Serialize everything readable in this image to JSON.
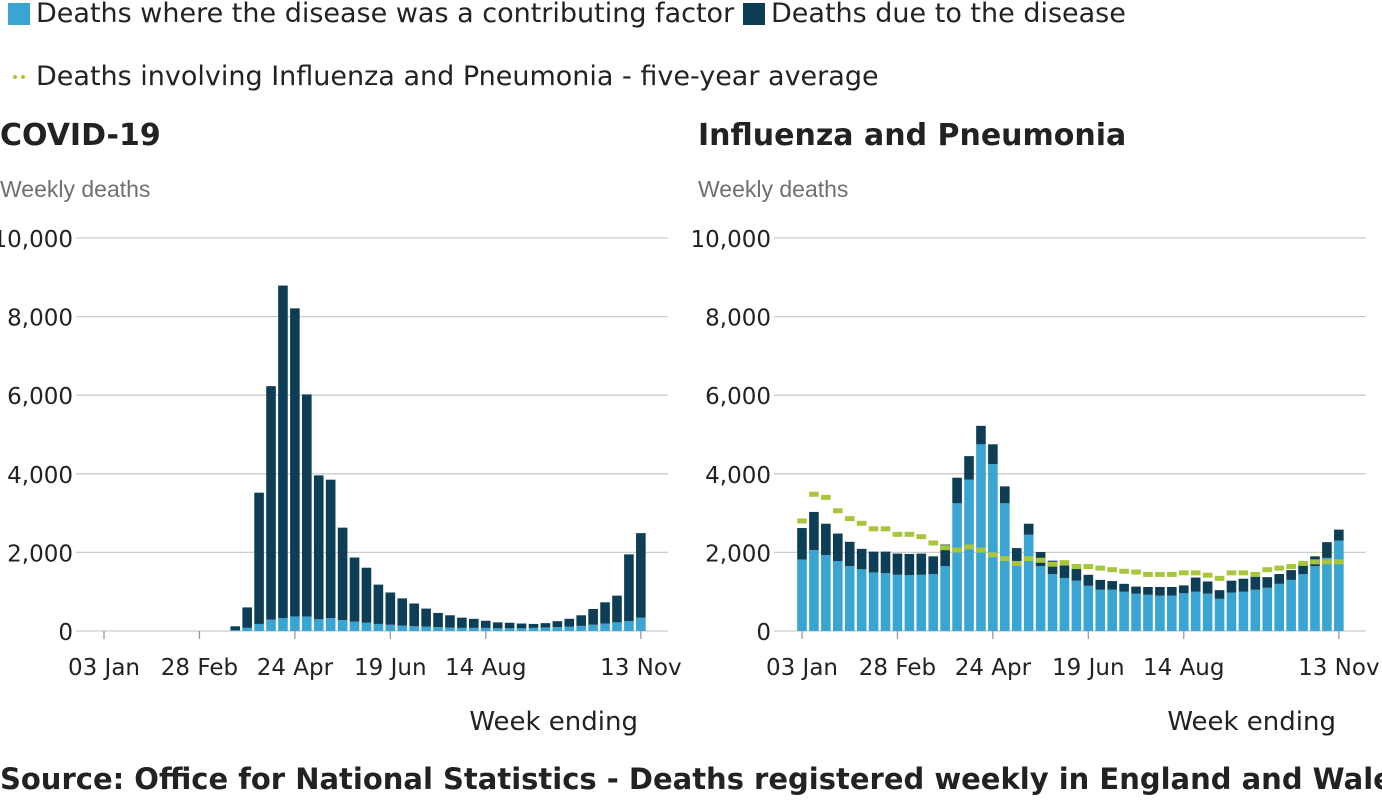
{
  "legend": {
    "items": [
      {
        "label": "Deaths where the disease was a contributing factor",
        "color": "#3aa4d3",
        "icon": "square-swatch"
      },
      {
        "label": "Deaths due to the disease",
        "color": "#0e3d56",
        "icon": "square-swatch"
      },
      {
        "label": "Deaths involving Influenza and Pneumonia - five-year average",
        "color": "#a8c63a",
        "icon": "dotted-line"
      }
    ]
  },
  "source": "Source: Office for National Statistics - Deaths registered weekly in England and Wales",
  "colors": {
    "contributing": "#3aa4d3",
    "due": "#0e3d56",
    "average": "#a8c63a",
    "grid": "#cccccc",
    "axis": "#999999"
  },
  "chart_data": [
    {
      "type": "bar",
      "stacked": true,
      "title": "COVID-19",
      "ylabel": "Weekly deaths",
      "xlabel": "Week ending",
      "ylim": [
        0,
        10000
      ],
      "yticks": [
        "0",
        "2,000",
        "4,000",
        "6,000",
        "8,000",
        "10,000"
      ],
      "ytick_values": [
        0,
        2000,
        4000,
        6000,
        8000,
        10000
      ],
      "xticks": [
        {
          "label": "03 Jan",
          "week": 0
        },
        {
          "label": "28 Feb",
          "week": 8
        },
        {
          "label": "24 Apr",
          "week": 16
        },
        {
          "label": "19 Jun",
          "week": 24
        },
        {
          "label": "14 Aug",
          "week": 32
        },
        {
          "label": "13 Nov",
          "week": 45
        }
      ],
      "grid": true,
      "series": [
        {
          "name": "Deaths where the disease was a contributing factor",
          "values": [
            0,
            0,
            0,
            0,
            0,
            0,
            0,
            0,
            0,
            0,
            0,
            20,
            80,
            180,
            290,
            330,
            370,
            370,
            300,
            330,
            280,
            240,
            210,
            180,
            160,
            140,
            120,
            110,
            100,
            90,
            80,
            80,
            80,
            70,
            70,
            70,
            80,
            90,
            100,
            110,
            130,
            160,
            190,
            220,
            250,
            340
          ]
        },
        {
          "name": "Deaths due to the disease",
          "values": [
            0,
            0,
            0,
            0,
            0,
            0,
            0,
            0,
            0,
            0,
            0,
            100,
            520,
            3340,
            5940,
            8460,
            7840,
            5650,
            3660,
            3520,
            2350,
            1630,
            1400,
            1000,
            820,
            690,
            580,
            460,
            360,
            310,
            260,
            230,
            180,
            150,
            140,
            120,
            100,
            110,
            150,
            200,
            270,
            400,
            540,
            680,
            1700,
            2150
          ]
        }
      ]
    },
    {
      "type": "bar",
      "stacked": true,
      "title": "Influenza and Pneumonia",
      "ylabel": "Weekly deaths",
      "xlabel": "Week ending",
      "ylim": [
        0,
        10000
      ],
      "yticks": [
        "0",
        "2,000",
        "4,000",
        "6,000",
        "8,000",
        "10,000"
      ],
      "ytick_values": [
        0,
        2000,
        4000,
        6000,
        8000,
        10000
      ],
      "xticks": [
        {
          "label": "03 Jan",
          "week": 0
        },
        {
          "label": "28 Feb",
          "week": 8
        },
        {
          "label": "24 Apr",
          "week": 16
        },
        {
          "label": "19 Jun",
          "week": 24
        },
        {
          "label": "14 Aug",
          "week": 32
        },
        {
          "label": "13 Nov",
          "week": 45
        }
      ],
      "grid": true,
      "series": [
        {
          "name": "Deaths where the disease was a contributing factor",
          "values": [
            1820,
            2060,
            1930,
            1780,
            1650,
            1570,
            1490,
            1470,
            1430,
            1420,
            1430,
            1450,
            1650,
            3250,
            3850,
            4750,
            4250,
            3250,
            1780,
            2450,
            1650,
            1450,
            1350,
            1280,
            1150,
            1050,
            1050,
            1000,
            950,
            920,
            900,
            900,
            960,
            1000,
            950,
            820,
            980,
            1000,
            1050,
            1100,
            1200,
            1300,
            1450,
            1650,
            1860,
            2300
          ]
        },
        {
          "name": "Deaths due to the disease",
          "values": [
            800,
            970,
            800,
            700,
            620,
            520,
            530,
            550,
            540,
            540,
            540,
            450,
            550,
            650,
            600,
            470,
            500,
            430,
            330,
            280,
            360,
            340,
            320,
            300,
            280,
            250,
            220,
            200,
            180,
            200,
            220,
            220,
            200,
            360,
            310,
            220,
            300,
            330,
            330,
            270,
            250,
            250,
            250,
            250,
            400,
            280
          ]
        },
        {
          "name": "Deaths involving Influenza and Pneumonia - five-year average",
          "type": "line",
          "values": [
            2800,
            3480,
            3400,
            3060,
            2860,
            2740,
            2600,
            2600,
            2460,
            2460,
            2400,
            2240,
            2120,
            2060,
            2140,
            2060,
            1940,
            1840,
            1720,
            1840,
            1800,
            1700,
            1740,
            1640,
            1640,
            1600,
            1560,
            1520,
            1500,
            1440,
            1440,
            1440,
            1480,
            1480,
            1420,
            1340,
            1480,
            1480,
            1440,
            1560,
            1600,
            1640,
            1720,
            1760,
            1760,
            1760
          ]
        }
      ]
    }
  ]
}
